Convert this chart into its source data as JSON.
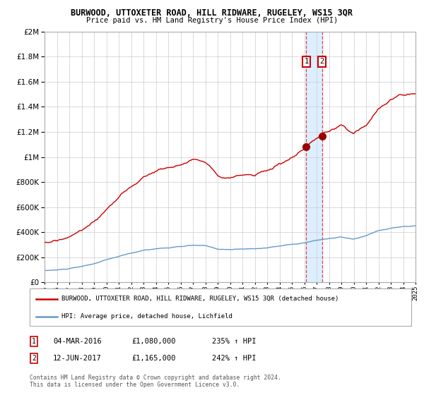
{
  "title": "BURWOOD, UTTOXETER ROAD, HILL RIDWARE, RUGELEY, WS15 3QR",
  "subtitle": "Price paid vs. HM Land Registry's House Price Index (HPI)",
  "red_label": "BURWOOD, UTTOXETER ROAD, HILL RIDWARE, RUGELEY, WS15 3QR (detached house)",
  "blue_label": "HPI: Average price, detached house, Lichfield",
  "annotation1_date": "04-MAR-2016",
  "annotation1_price": "£1,080,000",
  "annotation1_hpi": "235% ↑ HPI",
  "annotation2_date": "12-JUN-2017",
  "annotation2_price": "£1,165,000",
  "annotation2_hpi": "242% ↑ HPI",
  "footer": "Contains HM Land Registry data © Crown copyright and database right 2024.\nThis data is licensed under the Open Government Licence v3.0.",
  "red_color": "#cc0000",
  "blue_color": "#6699cc",
  "dot_color": "#990000",
  "vline_color": "#dd4444",
  "vband_color": "#ddeeff",
  "background_color": "#ffffff",
  "grid_color": "#cccccc",
  "ylim": [
    0,
    2000000
  ],
  "sale1_year": 2016.17,
  "sale1_value": 1080000,
  "sale2_year": 2017.44,
  "sale2_value": 1165000
}
